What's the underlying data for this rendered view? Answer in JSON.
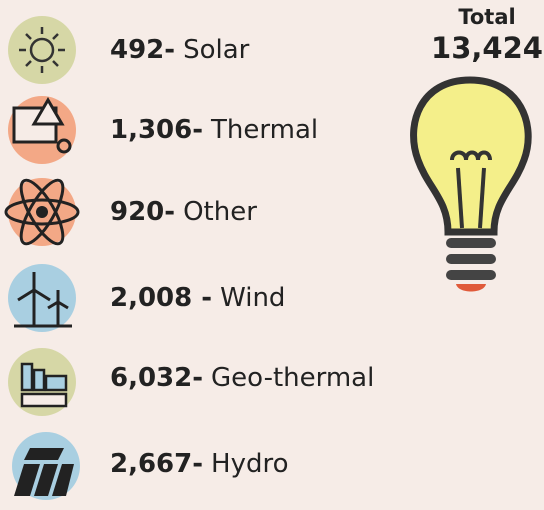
{
  "total": {
    "label": "Total",
    "value": "13,424"
  },
  "items": [
    {
      "value": "492-",
      "name": "Solar"
    },
    {
      "value": "1,306-",
      "name": "Thermal"
    },
    {
      "value": "920-",
      "name": "Other"
    },
    {
      "value": "2,008 -",
      "name": "Wind"
    },
    {
      "value": "6,032-",
      "name": "Geo-thermal"
    },
    {
      "value": "2,667-",
      "name": "Hydro"
    }
  ]
}
